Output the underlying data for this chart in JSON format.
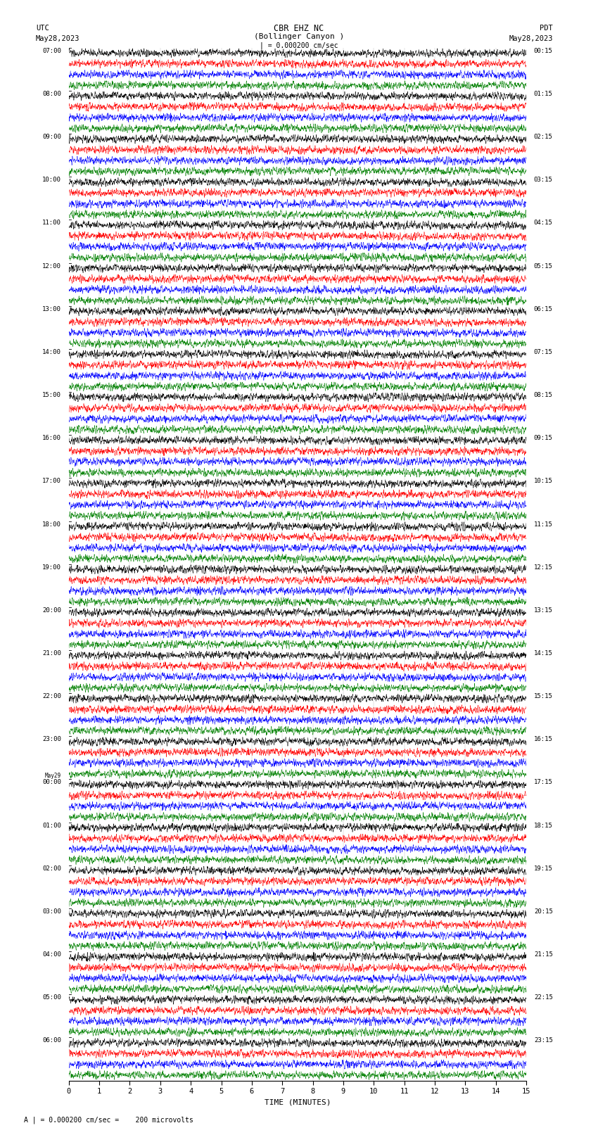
{
  "title_line1": "CBR EHZ NC",
  "title_line2": "(Bollinger Canyon )",
  "title_line3": "| = 0.000200 cm/sec",
  "label_utc": "UTC",
  "label_pdt": "PDT",
  "date_left": "May28,2023",
  "date_right": "May28,2023",
  "xlabel": "TIME (MINUTES)",
  "footer": "A | = 0.000200 cm/sec =    200 microvolts",
  "left_hours": [
    "07:00",
    "08:00",
    "09:00",
    "10:00",
    "11:00",
    "12:00",
    "13:00",
    "14:00",
    "15:00",
    "16:00",
    "17:00",
    "18:00",
    "19:00",
    "20:00",
    "21:00",
    "22:00",
    "23:00",
    "00:00",
    "01:00",
    "02:00",
    "03:00",
    "04:00",
    "05:00",
    "06:00"
  ],
  "right_hours": [
    "00:15",
    "01:15",
    "02:15",
    "03:15",
    "04:15",
    "05:15",
    "06:15",
    "07:15",
    "08:15",
    "09:15",
    "10:15",
    "11:15",
    "12:15",
    "13:15",
    "14:15",
    "15:15",
    "16:15",
    "17:15",
    "18:15",
    "19:15",
    "20:15",
    "21:15",
    "22:15",
    "23:15"
  ],
  "may29_group": 17,
  "colors": [
    "black",
    "red",
    "blue",
    "green"
  ],
  "n_groups": 24,
  "traces_per_group": 4,
  "time_min": 0,
  "time_max": 15,
  "bg_color": "white",
  "seed": 42
}
